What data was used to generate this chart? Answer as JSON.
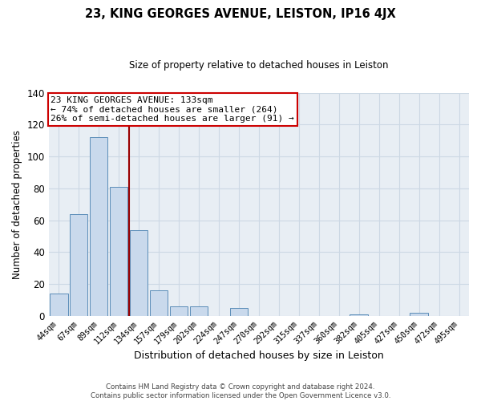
{
  "title": "23, KING GEORGES AVENUE, LEISTON, IP16 4JX",
  "subtitle": "Size of property relative to detached houses in Leiston",
  "xlabel": "Distribution of detached houses by size in Leiston",
  "ylabel": "Number of detached properties",
  "bar_labels": [
    "44sqm",
    "67sqm",
    "89sqm",
    "112sqm",
    "134sqm",
    "157sqm",
    "179sqm",
    "202sqm",
    "224sqm",
    "247sqm",
    "270sqm",
    "292sqm",
    "315sqm",
    "337sqm",
    "360sqm",
    "382sqm",
    "405sqm",
    "427sqm",
    "450sqm",
    "472sqm",
    "495sqm"
  ],
  "bar_values": [
    14,
    64,
    112,
    81,
    54,
    16,
    6,
    6,
    0,
    5,
    0,
    0,
    0,
    0,
    0,
    1,
    0,
    0,
    2,
    0,
    0
  ],
  "bar_color": "#c9d9ec",
  "bar_edge_color": "#5b8db8",
  "ylim": [
    0,
    140
  ],
  "yticks": [
    0,
    20,
    40,
    60,
    80,
    100,
    120,
    140
  ],
  "vline_color": "#990000",
  "annotation_line1": "23 KING GEORGES AVENUE: 133sqm",
  "annotation_line2": "← 74% of detached houses are smaller (264)",
  "annotation_line3": "26% of semi-detached houses are larger (91) →",
  "annotation_box_facecolor": "#ffffff",
  "annotation_box_edgecolor": "#cc0000",
  "grid_color": "#ccd8e4",
  "axes_facecolor": "#e8eef4",
  "fig_facecolor": "#ffffff",
  "title_fontsize": 10.5,
  "subtitle_fontsize": 8.5,
  "footer_line1": "Contains HM Land Registry data © Crown copyright and database right 2024.",
  "footer_line2": "Contains public sector information licensed under the Open Government Licence v3.0."
}
